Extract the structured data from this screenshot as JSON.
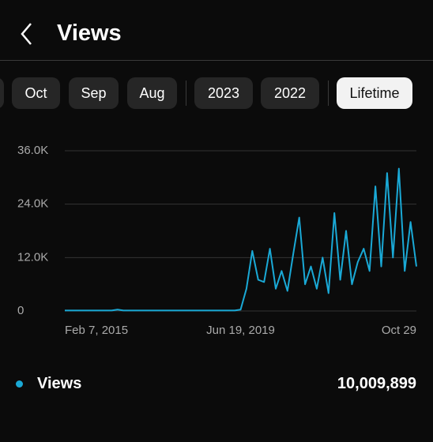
{
  "header": {
    "title": "Views"
  },
  "tabs": [
    "Oct",
    "Sep",
    "Aug",
    "2023",
    "2022",
    "Lifetime"
  ],
  "chart_data": {
    "type": "line",
    "categories": [
      "Feb 7, 2015",
      null,
      null,
      null,
      null,
      null,
      null,
      null,
      null,
      null,
      null,
      null,
      null,
      null,
      null,
      null,
      null,
      null,
      null,
      null,
      null,
      null,
      null,
      null,
      null,
      null,
      null,
      null,
      null,
      null,
      "Jun 19, 2019",
      null,
      null,
      null,
      null,
      null,
      null,
      null,
      null,
      null,
      null,
      null,
      null,
      null,
      null,
      null,
      null,
      null,
      null,
      null,
      null,
      null,
      null,
      null,
      null,
      null,
      null,
      null,
      null,
      null,
      "Oct 29"
    ],
    "series": [
      {
        "name": "Views",
        "color": "#1aa9d6",
        "values": [
          100,
          100,
          100,
          100,
          100,
          100,
          100,
          100,
          100,
          300,
          100,
          100,
          100,
          100,
          100,
          100,
          100,
          100,
          100,
          100,
          100,
          100,
          100,
          100,
          100,
          100,
          100,
          100,
          100,
          100,
          300,
          5000,
          13500,
          7000,
          6500,
          14000,
          5000,
          9000,
          4500,
          13000,
          21000,
          6000,
          10000,
          5000,
          12000,
          4000,
          22000,
          7000,
          18000,
          6000,
          11000,
          14000,
          9000,
          28000,
          10000,
          31000,
          12000,
          32000,
          9000,
          20000,
          10000
        ]
      }
    ],
    "ylim": [
      0,
      36000
    ],
    "yticks": [
      0,
      {
        "value": 12000,
        "label": "12.0K"
      },
      {
        "value": 24000,
        "label": "24.0K"
      },
      {
        "value": 36000,
        "label": "36.0K"
      }
    ],
    "grid": true
  },
  "legend": {
    "total": "10,009,899"
  }
}
